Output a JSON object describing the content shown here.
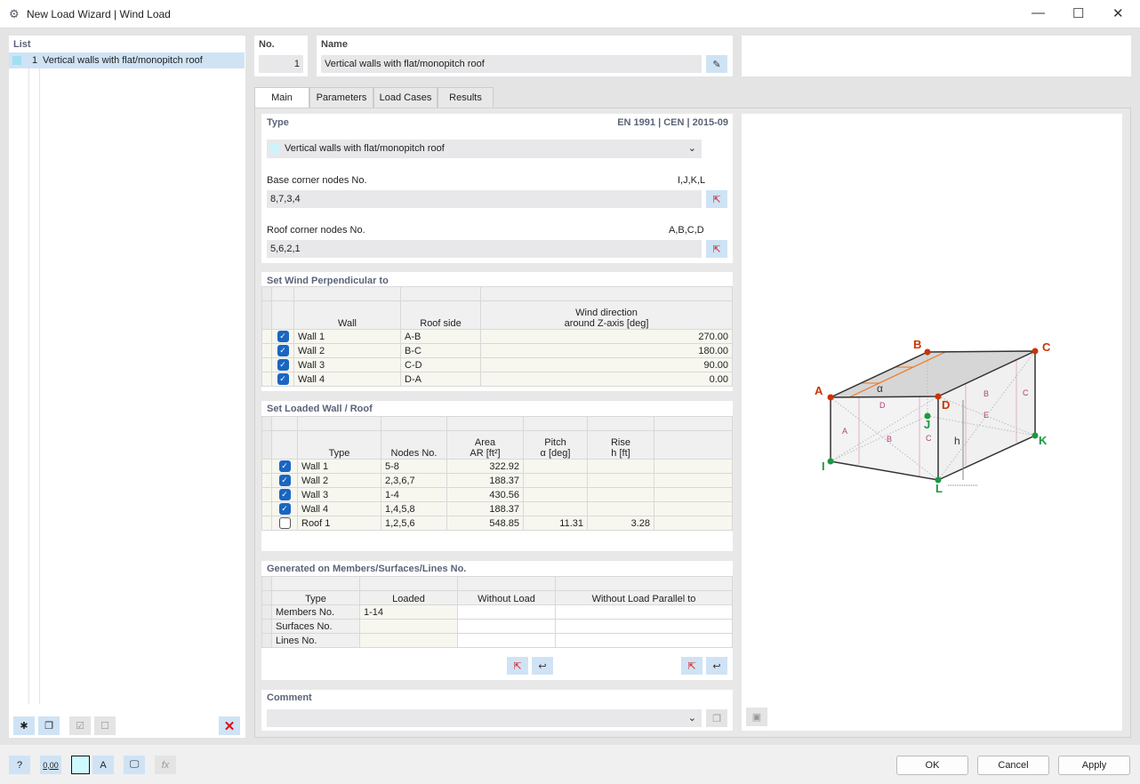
{
  "window": {
    "title": "New Load Wizard | Wind Load"
  },
  "list": {
    "header": "List",
    "items": [
      {
        "no": "1",
        "label": "Vertical walls with flat/monopitch roof"
      }
    ]
  },
  "header": {
    "no_label": "No.",
    "no_value": "1",
    "name_label": "Name",
    "name_value": "Vertical walls with flat/monopitch roof"
  },
  "tabs": [
    {
      "label": "Main"
    },
    {
      "label": "Parameters"
    },
    {
      "label": "Load Cases"
    },
    {
      "label": "Results"
    }
  ],
  "type_section": {
    "title": "Type",
    "standard": "EN 1991 | CEN | 2015-09",
    "type_value": "Vertical walls with flat/monopitch roof",
    "base_label": "Base corner nodes No.",
    "base_hint": "I,J,K,L",
    "base_value": "8,7,3,4",
    "roof_label": "Roof corner nodes No.",
    "roof_hint": "A,B,C,D",
    "roof_value": "5,6,2,1"
  },
  "wind_section": {
    "title": "Set Wind Perpendicular to",
    "headers": {
      "wall": "Wall",
      "roof_side": "Roof side",
      "dir1": "Wind direction",
      "dir2": "around Z-axis [deg]"
    },
    "rows": [
      {
        "checked": true,
        "wall": "Wall 1",
        "side": "A-B",
        "dir": "270.00"
      },
      {
        "checked": true,
        "wall": "Wall 2",
        "side": "B-C",
        "dir": "180.00"
      },
      {
        "checked": true,
        "wall": "Wall 3",
        "side": "C-D",
        "dir": "90.00"
      },
      {
        "checked": true,
        "wall": "Wall 4",
        "side": "D-A",
        "dir": "0.00"
      }
    ]
  },
  "loaded_section": {
    "title": "Set Loaded Wall / Roof",
    "headers": {
      "type": "Type",
      "nodes": "Nodes No.",
      "area1": "Area",
      "area2": "AR [ft²]",
      "pitch1": "Pitch",
      "pitch2": "α [deg]",
      "rise1": "Rise",
      "rise2": "h [ft]"
    },
    "rows": [
      {
        "checked": true,
        "type": "Wall 1",
        "nodes": "5-8",
        "area": "322.92",
        "pitch": "",
        "rise": ""
      },
      {
        "checked": true,
        "type": "Wall 2",
        "nodes": "2,3,6,7",
        "area": "188.37",
        "pitch": "",
        "rise": ""
      },
      {
        "checked": true,
        "type": "Wall 3",
        "nodes": "1-4",
        "area": "430.56",
        "pitch": "",
        "rise": ""
      },
      {
        "checked": true,
        "type": "Wall 4",
        "nodes": "1,4,5,8",
        "area": "188.37",
        "pitch": "",
        "rise": ""
      },
      {
        "checked": false,
        "type": "Roof 1",
        "nodes": "1,2,5,6",
        "area": "548.85",
        "pitch": "11.31",
        "rise": "3.28"
      }
    ]
  },
  "generated_section": {
    "title": "Generated on Members/Surfaces/Lines No.",
    "headers": {
      "type": "Type",
      "loaded": "Loaded",
      "without": "Without Load",
      "parallel": "Without Load Parallel to"
    },
    "rows": [
      {
        "type": "Members No.",
        "loaded": "1-14"
      },
      {
        "type": "Surfaces No.",
        "loaded": ""
      },
      {
        "type": "Lines No.",
        "loaded": ""
      }
    ]
  },
  "comment": {
    "label": "Comment",
    "value": ""
  },
  "diagram": {
    "nodes_top": [
      "A",
      "B",
      "C",
      "D"
    ],
    "nodes_base": [
      "I",
      "J",
      "K",
      "L"
    ],
    "zones": [
      "A",
      "B",
      "C",
      "D",
      "E"
    ],
    "alpha": "α",
    "h": "h",
    "top_color": "#cc3300",
    "base_color": "#1a9940",
    "zone_color": "#b0407a"
  },
  "buttons": {
    "ok": "OK",
    "cancel": "Cancel",
    "apply": "Apply"
  },
  "bottom_tools": {
    "units": "0,00"
  }
}
